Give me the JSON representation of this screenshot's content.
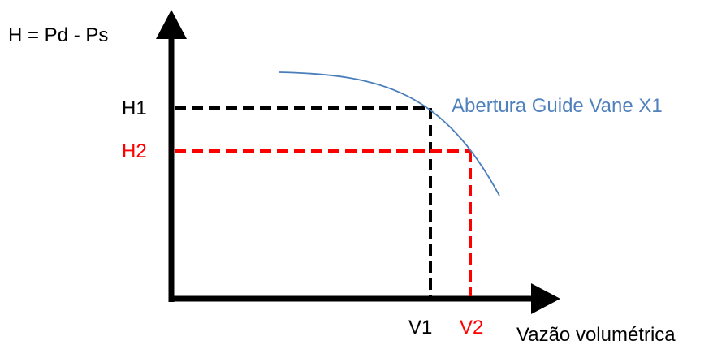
{
  "axes": {
    "y_label": "H = Pd - Ps",
    "x_label": "Vazão volumétrica"
  },
  "points": {
    "h1_label": "H1",
    "h2_label": "H2",
    "v1_label": "V1",
    "v2_label": "V2"
  },
  "curve": {
    "label": "Abertura Guide Vane X1"
  },
  "colors": {
    "axis": "#000000",
    "point1": "#000000",
    "point2": "#ff0000",
    "curve": "#4a7ebb",
    "curve_label": "#4f81bd"
  }
}
